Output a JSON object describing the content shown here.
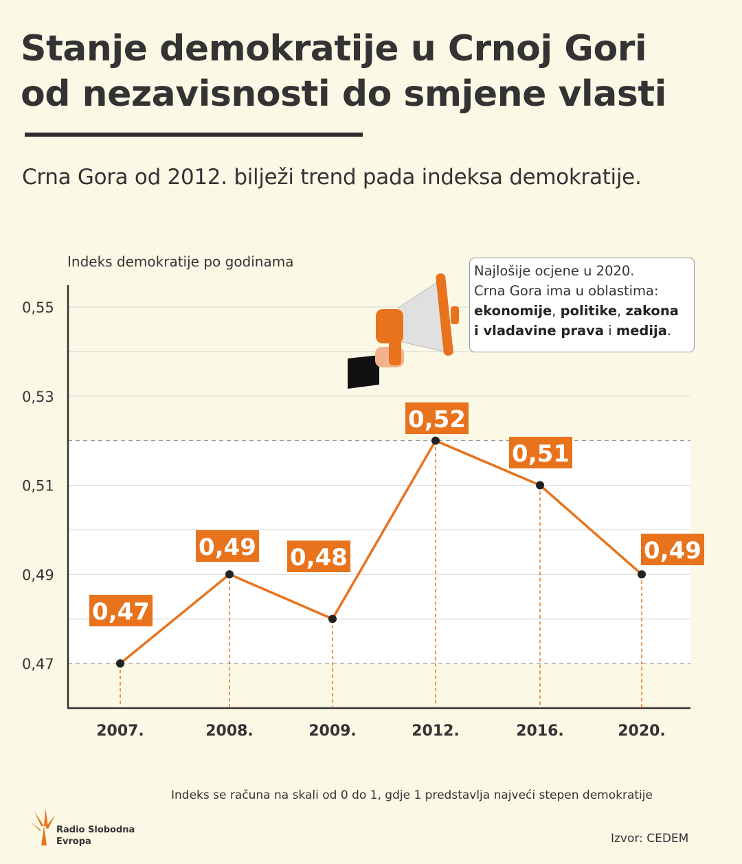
{
  "title_line1": "Stanje demokratije u Crnoj Gori",
  "title_line2_underlined": "od nezavisnosti",
  "title_line2_rest": " do smjene vlasti",
  "subtitle": "Crna Gora od 2012. bilježi trend pada indeksa demokratije.",
  "callout": {
    "line1": "Najlošije ocjene u 2020.",
    "line2": "Crna Gora ima u oblastima:",
    "areas": [
      "ekonomije",
      "politike",
      "zakona",
      "i vladavine prava",
      "medija"
    ],
    "sep1": ", ",
    "sep2": ", ",
    "sep3": " i ",
    "end": "."
  },
  "footnote": "Indeks se računa na skali od 0 do 1, gdje 1 predstavlja najveći stepen demokratije",
  "source": "Izvor: CEDEM",
  "logo": {
    "line1": "Radio Slobodna",
    "line2": "Evropa"
  },
  "colors": {
    "accent": "#e8731c",
    "line": "#e8731c",
    "point": "#222222",
    "text": "#333333",
    "background": "#fbf8e6"
  },
  "icons": [
    "megaphone-icon",
    "rfe-logo-icon"
  ],
  "chart_data": {
    "type": "line",
    "ylabel": "Indeks demokratije po godinama",
    "categories": [
      "2007.",
      "2008.",
      "2009.",
      "2012.",
      "2016.",
      "2020."
    ],
    "values": [
      0.47,
      0.49,
      0.48,
      0.52,
      0.51,
      0.49
    ],
    "data_labels": [
      "0,47",
      "0,49",
      "0,48",
      "0,52",
      "0,51",
      "0,49"
    ],
    "yticks": [
      "0,55",
      "0,53",
      "0,51",
      "0,49",
      "0,47"
    ],
    "ytick_values": [
      0.55,
      0.53,
      0.51,
      0.49,
      0.47
    ],
    "ylim": [
      0.46,
      0.555
    ],
    "grid": true
  }
}
